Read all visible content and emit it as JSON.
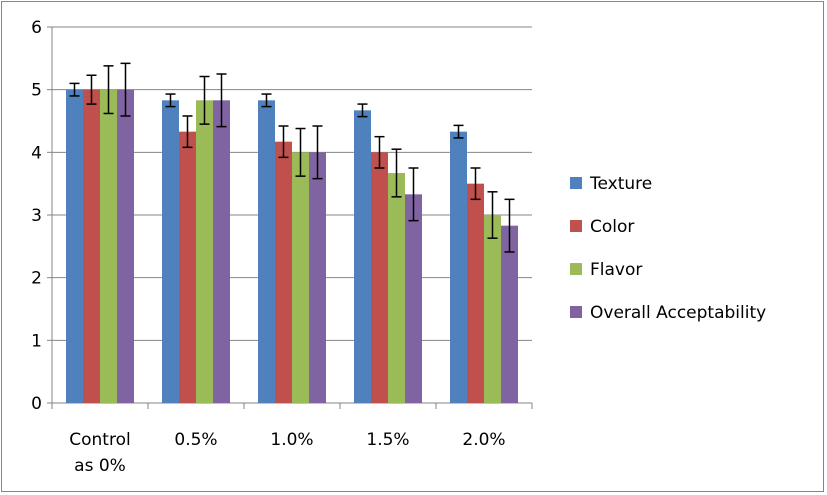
{
  "chart_data": {
    "type": "bar",
    "categories": [
      "Control as 0%",
      "0.5%",
      "1.0%",
      "1.5%",
      "2.0%"
    ],
    "category_lines": [
      [
        "Control",
        "as 0%"
      ],
      [
        "0.5%"
      ],
      [
        "1.0%"
      ],
      [
        "1.5%"
      ],
      [
        "2.0%"
      ]
    ],
    "series": [
      {
        "name": "Texture",
        "color": "#4F81BD",
        "values": [
          5.0,
          4.83,
          4.83,
          4.67,
          4.33
        ],
        "errors": [
          0.1,
          0.1,
          0.1,
          0.1,
          0.1
        ]
      },
      {
        "name": "Color",
        "color": "#C0504D",
        "values": [
          5.0,
          4.33,
          4.17,
          4.0,
          3.5
        ],
        "errors": [
          0.23,
          0.25,
          0.25,
          0.25,
          0.25
        ]
      },
      {
        "name": "Flavor",
        "color": "#9BBB59",
        "values": [
          5.0,
          4.83,
          4.0,
          3.67,
          3.0
        ],
        "errors": [
          0.38,
          0.38,
          0.38,
          0.38,
          0.37
        ]
      },
      {
        "name": "Overall Acceptability",
        "color": "#8064A2",
        "values": [
          5.0,
          4.83,
          4.0,
          3.33,
          2.83
        ],
        "errors": [
          0.42,
          0.42,
          0.42,
          0.42,
          0.42
        ]
      }
    ],
    "yticks": [
      "0",
      "1",
      "2",
      "3",
      "4",
      "5",
      "6"
    ],
    "ylim": [
      0,
      6
    ],
    "grid": true,
    "legend": "right",
    "title": "",
    "xlabel": "",
    "ylabel": ""
  }
}
